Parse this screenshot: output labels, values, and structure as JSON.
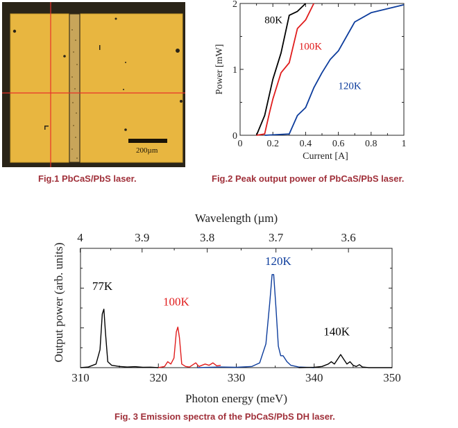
{
  "figures": {
    "fig1": {
      "caption": "Fig.1  PbCaS/PbS laser.",
      "image": "micrograph of PbCaS/PbS laser chip with red crosshair",
      "scale_bar_label": "200µm",
      "colors": {
        "chip": "#e8b640",
        "background": "#2a2418",
        "crosshair": "#e8322a"
      }
    },
    "fig2": {
      "caption": "Fig.2 Peak output power of PbCaS/PbS laser."
    },
    "fig3": {
      "caption": "Fig. 3 Emission spectra of the PbCaS/PbS DH laser."
    }
  },
  "chart_data": [
    {
      "type": "line",
      "title": "Peak output power of PbCaS/PbS laser",
      "xlabel": "Current [A]",
      "ylabel": "Power [mW]",
      "xlim": [
        0,
        1
      ],
      "ylim": [
        0,
        2
      ],
      "xticks": [
        "0",
        "0.2",
        "0.4",
        "0.6",
        "0.8",
        "1"
      ],
      "yticks": [
        "0",
        "1",
        "2"
      ],
      "grid": false,
      "series": [
        {
          "name": "80K",
          "color": "#000000",
          "x": [
            0.1,
            0.15,
            0.2,
            0.25,
            0.3,
            0.35,
            0.4
          ],
          "y": [
            0,
            0.3,
            0.85,
            1.25,
            1.82,
            1.88,
            2.0
          ]
        },
        {
          "name": "100K",
          "color": "#e01c1c",
          "x": [
            0.1,
            0.15,
            0.18,
            0.2,
            0.25,
            0.3,
            0.35,
            0.4,
            0.45
          ],
          "y": [
            0,
            0.02,
            0.35,
            0.55,
            0.95,
            1.1,
            1.62,
            1.75,
            2.0
          ]
        },
        {
          "name": "120K",
          "color": "#0c3c9c",
          "x": [
            0.15,
            0.3,
            0.35,
            0.4,
            0.45,
            0.5,
            0.55,
            0.6,
            0.7,
            0.8,
            1.0
          ],
          "y": [
            0,
            0.02,
            0.3,
            0.42,
            0.72,
            0.95,
            1.15,
            1.28,
            1.72,
            1.86,
            1.98
          ]
        }
      ],
      "annotations": [
        {
          "text": "80K",
          "color": "#000000"
        },
        {
          "text": "100K",
          "color": "#e01c1c"
        },
        {
          "text": "120K",
          "color": "#0c3c9c"
        }
      ]
    },
    {
      "type": "line",
      "title": "Emission spectra of the PbCaS/PbS DH laser",
      "xlabel": "Photon energy (meV)",
      "ylabel": "Output power (arb. units)",
      "x2label": "Wavelength (µm)",
      "xlim": [
        310,
        350
      ],
      "ylim": [
        0,
        1
      ],
      "xticks": [
        "310",
        "320",
        "330",
        "340",
        "350"
      ],
      "x2ticks": [
        "4",
        "3.9",
        "3.8",
        "3.7",
        "3.6"
      ],
      "grid": false,
      "series": [
        {
          "name": "77K",
          "color": "#000000",
          "x": [
            310,
            311,
            312,
            312.5,
            312.8,
            313,
            313.2,
            313.5,
            314,
            315,
            316,
            317,
            318,
            319,
            320
          ],
          "y": [
            0,
            0.005,
            0.03,
            0.15,
            0.45,
            0.49,
            0.3,
            0.05,
            0.02,
            0.01,
            0.005,
            0.008,
            0.003,
            0.004,
            0
          ]
        },
        {
          "name": "100K",
          "color": "#e01c1c",
          "x": [
            320,
            320.8,
            321.2,
            321.6,
            322,
            322.3,
            322.5,
            322.7,
            323,
            323.5,
            324,
            324.8,
            325.2,
            326,
            326.5,
            327,
            327.5,
            328
          ],
          "y": [
            0,
            0.01,
            0.05,
            0.03,
            0.08,
            0.3,
            0.34,
            0.25,
            0.03,
            0.01,
            0.005,
            0.04,
            0.01,
            0.03,
            0.02,
            0.04,
            0.015,
            0.02
          ]
        },
        {
          "name": "120K",
          "color": "#0c3c9c",
          "x": [
            325,
            328,
            330,
            332,
            333,
            333.8,
            334.3,
            334.6,
            334.8,
            335.1,
            335.4,
            335.7,
            336,
            336.5,
            337,
            338,
            340
          ],
          "y": [
            0,
            0.005,
            0.003,
            0.01,
            0.04,
            0.2,
            0.55,
            0.78,
            0.78,
            0.5,
            0.18,
            0.1,
            0.1,
            0.05,
            0.02,
            0.005,
            0
          ]
        },
        {
          "name": "140K",
          "color": "#000000",
          "x": [
            338,
            340,
            341,
            341.8,
            342.2,
            342.6,
            343,
            343.4,
            343.8,
            344.2,
            344.6,
            345,
            345.4,
            345.8,
            346.2,
            347,
            350
          ],
          "y": [
            0,
            0.003,
            0.01,
            0.03,
            0.05,
            0.03,
            0.07,
            0.11,
            0.07,
            0.03,
            0.05,
            0.02,
            0.01,
            0.025,
            0.005,
            0,
            0
          ]
        }
      ],
      "annotations": [
        {
          "text": "77K",
          "color": "#000000"
        },
        {
          "text": "100K",
          "color": "#e01c1c"
        },
        {
          "text": "120K",
          "color": "#0c3c9c"
        },
        {
          "text": "140K",
          "color": "#000000"
        }
      ]
    }
  ]
}
